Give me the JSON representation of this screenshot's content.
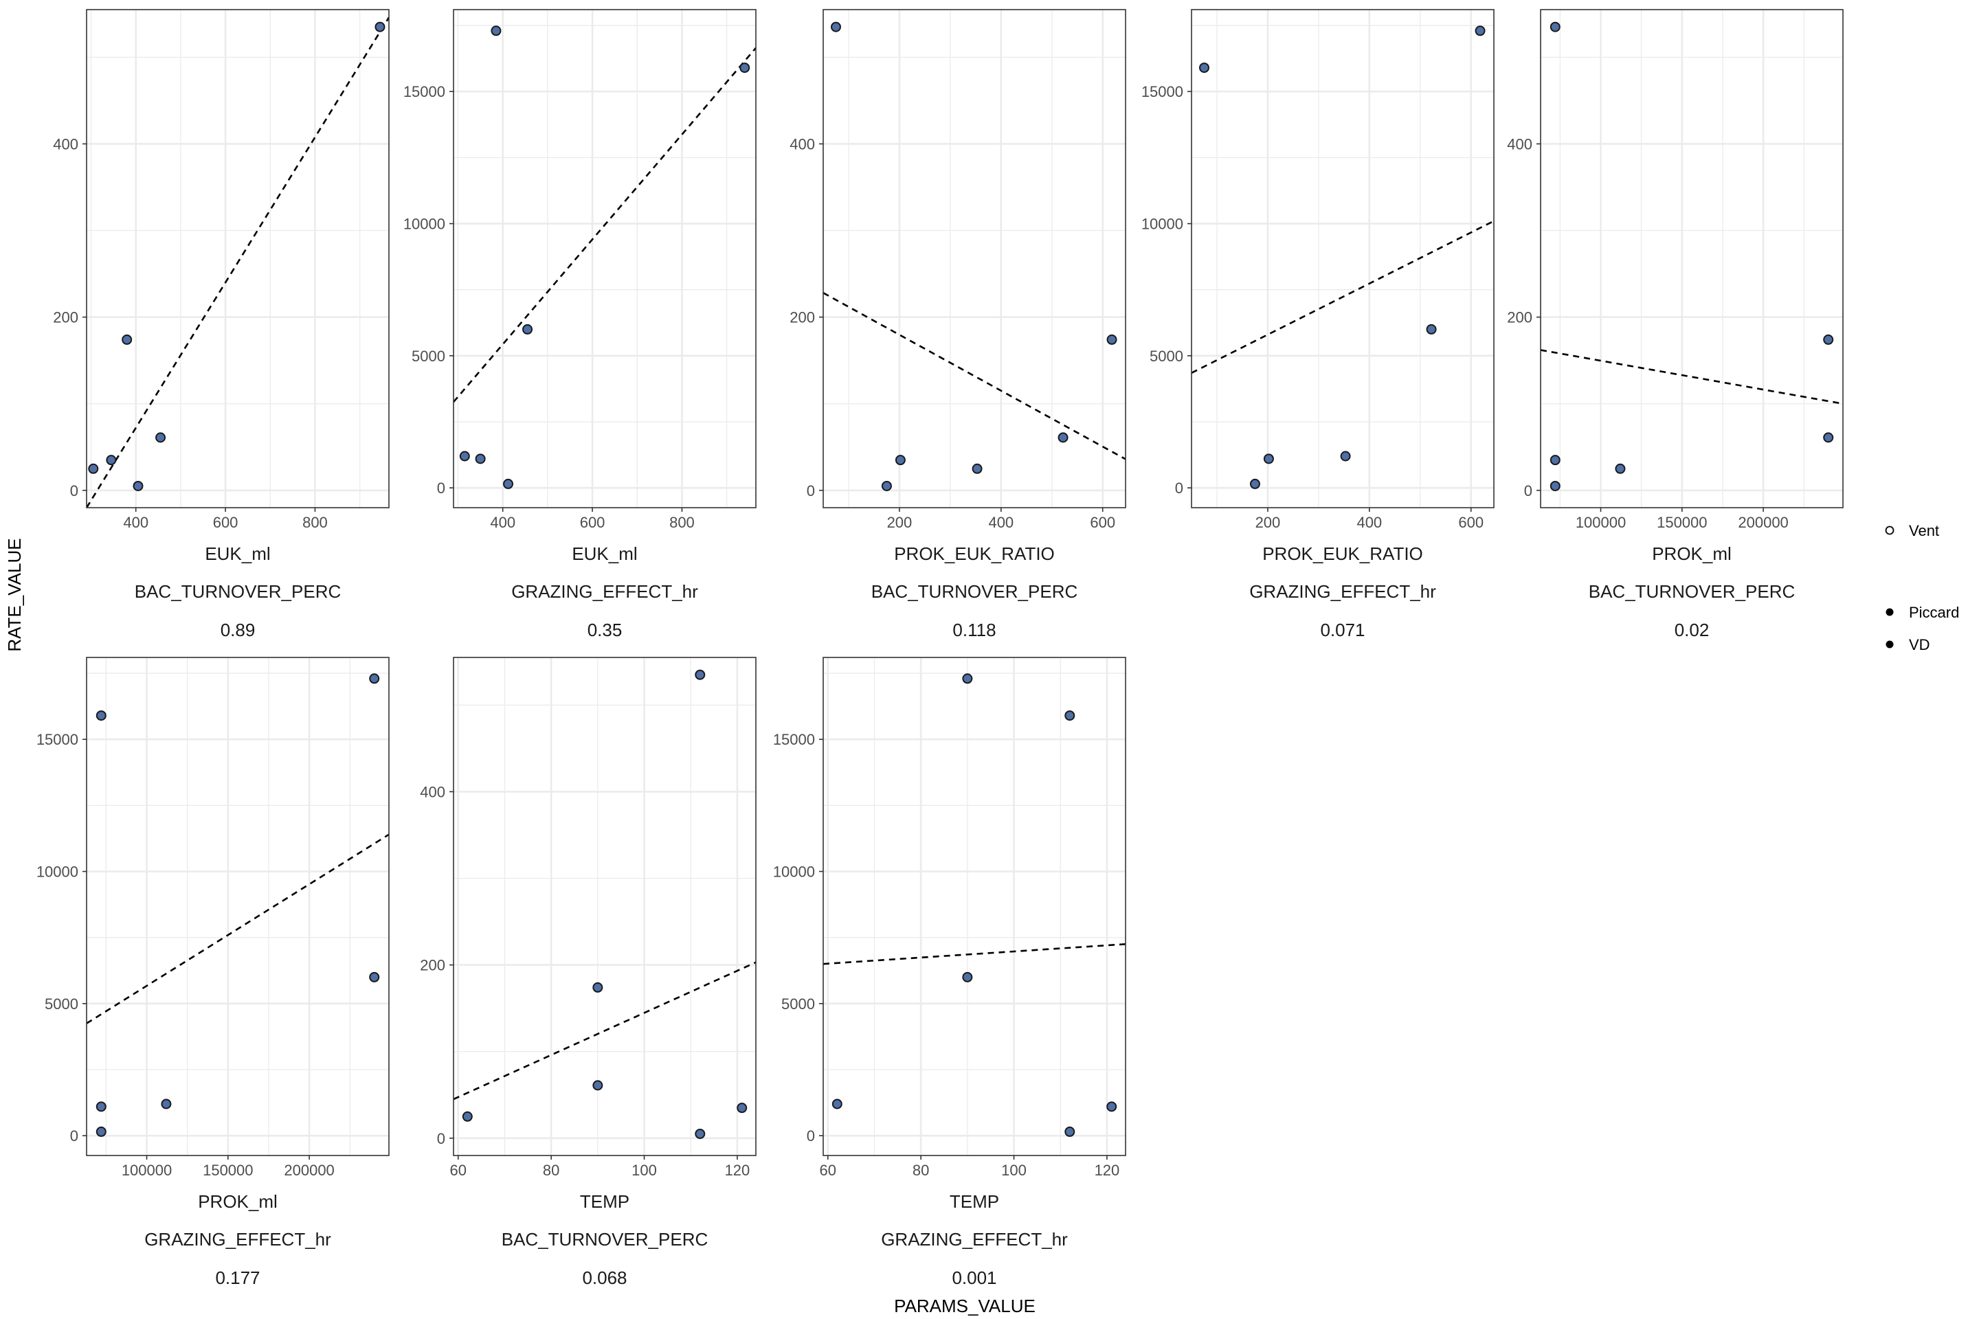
{
  "figure": {
    "y_axis_title": "RATE_VALUE",
    "x_axis_title": "PARAMS_VALUE",
    "legend": {
      "items": [
        {
          "label": "Vent",
          "shape": "open-circle"
        },
        {
          "label": "Piccard",
          "shape": "filled-circle"
        },
        {
          "label": "VD",
          "shape": "filled-circle"
        }
      ]
    },
    "colors": {
      "point_fill": "#4f6fa5",
      "point_stroke": "#1a1a1a",
      "panel_border": "#333333",
      "grid": "#ebebeb",
      "fit_line": "#000000"
    }
  },
  "chart_data": [
    {
      "type": "scatter",
      "param": "EUK_ml",
      "rate": "BAC_TURNOVER_PERC",
      "stat": "0.89",
      "x": [
        305,
        345,
        380,
        405,
        455,
        945
      ],
      "y": [
        25,
        35,
        174,
        5,
        61,
        535
      ],
      "xlim": [
        290,
        965
      ],
      "ylim": [
        -20,
        555
      ],
      "xticks": [
        400,
        600,
        800
      ],
      "xtick_labels": [
        "400",
        "600",
        "800"
      ],
      "yticks": [
        0,
        200,
        400
      ],
      "ytick_labels": [
        "0",
        "200",
        "400"
      ],
      "trend": {
        "x": [
          290,
          965
        ],
        "y": [
          -20,
          546
        ]
      }
    },
    {
      "type": "scatter",
      "param": "EUK_ml",
      "rate": "GRAZING_EFFECT_hr",
      "stat": "0.35",
      "x": [
        315,
        350,
        385,
        412,
        455,
        940
      ],
      "y": [
        1200,
        1100,
        17300,
        150,
        6000,
        15900
      ],
      "xlim": [
        290,
        965
      ],
      "ylim": [
        -750,
        18100
      ],
      "xticks": [
        400,
        600,
        800
      ],
      "xtick_labels": [
        "400",
        "600",
        "800"
      ],
      "yticks": [
        0,
        5000,
        10000,
        15000
      ],
      "ytick_labels": [
        "0",
        "5000",
        "10000",
        "15000"
      ],
      "trend": {
        "x": [
          290,
          965
        ],
        "y": [
          3250,
          16650
        ]
      }
    },
    {
      "type": "scatter",
      "param": "PROK_EUK_RATIO",
      "rate": "BAC_TURNOVER_PERC",
      "stat": "0.118",
      "x": [
        75,
        175,
        202,
        353,
        522,
        618
      ],
      "y": [
        535,
        5,
        35,
        25,
        61,
        174
      ],
      "xlim": [
        50,
        645
      ],
      "ylim": [
        -20,
        555
      ],
      "xticks": [
        200,
        400,
        600
      ],
      "xtick_labels": [
        "200",
        "400",
        "600"
      ],
      "yticks": [
        0,
        200,
        400
      ],
      "ytick_labels": [
        "0",
        "200",
        "400"
      ],
      "trend": {
        "x": [
          50,
          645
        ],
        "y": [
          228,
          36
        ]
      }
    },
    {
      "type": "scatter",
      "param": "PROK_EUK_RATIO",
      "rate": "GRAZING_EFFECT_hr",
      "stat": "0.071",
      "x": [
        75,
        175,
        202,
        353,
        522,
        618
      ],
      "y": [
        15900,
        150,
        1100,
        1200,
        6000,
        17300
      ],
      "xlim": [
        50,
        645
      ],
      "ylim": [
        -750,
        18100
      ],
      "xticks": [
        200,
        400,
        600
      ],
      "xtick_labels": [
        "200",
        "400",
        "600"
      ],
      "yticks": [
        0,
        5000,
        10000,
        15000
      ],
      "ytick_labels": [
        "0",
        "5000",
        "10000",
        "15000"
      ],
      "trend": {
        "x": [
          50,
          645
        ],
        "y": [
          4350,
          10100
        ]
      }
    },
    {
      "type": "scatter",
      "param": "PROK_ml",
      "rate": "BAC_TURNOVER_PERC",
      "stat": "0.02",
      "x": [
        72000,
        72000,
        72000,
        112000,
        240000,
        240000
      ],
      "y": [
        535,
        35,
        5,
        25,
        174,
        61
      ],
      "xlim": [
        63000,
        249000
      ],
      "ylim": [
        -20,
        555
      ],
      "xticks": [
        100000,
        150000,
        200000
      ],
      "xtick_labels": [
        "100000",
        "150000",
        "200000"
      ],
      "yticks": [
        0,
        200,
        400
      ],
      "ytick_labels": [
        "0",
        "200",
        "400"
      ],
      "trend": {
        "x": [
          63000,
          249000
        ],
        "y": [
          162,
          100
        ]
      }
    },
    {
      "type": "scatter",
      "param": "PROK_ml",
      "rate": "GRAZING_EFFECT_hr",
      "stat": "0.177",
      "x": [
        72000,
        72000,
        72000,
        112000,
        240000,
        240000
      ],
      "y": [
        15900,
        1100,
        150,
        1200,
        17300,
        6000
      ],
      "xlim": [
        63000,
        249000
      ],
      "ylim": [
        -750,
        18100
      ],
      "xticks": [
        100000,
        150000,
        200000
      ],
      "xtick_labels": [
        "100000",
        "150000",
        "200000"
      ],
      "yticks": [
        0,
        5000,
        10000,
        15000
      ],
      "ytick_labels": [
        "0",
        "5000",
        "10000",
        "15000"
      ],
      "trend": {
        "x": [
          63000,
          249000
        ],
        "y": [
          4250,
          11400
        ]
      }
    },
    {
      "type": "scatter",
      "param": "TEMP",
      "rate": "BAC_TURNOVER_PERC",
      "stat": "0.068",
      "x": [
        62,
        90,
        90,
        112,
        112,
        121
      ],
      "y": [
        25,
        174,
        61,
        535,
        5,
        35
      ],
      "xlim": [
        59,
        124
      ],
      "ylim": [
        -20,
        555
      ],
      "xticks": [
        60,
        80,
        100,
        120
      ],
      "xtick_labels": [
        "60",
        "80",
        "100",
        "120"
      ],
      "yticks": [
        0,
        200,
        400
      ],
      "ytick_labels": [
        "0",
        "200",
        "400"
      ],
      "trend": {
        "x": [
          59,
          124
        ],
        "y": [
          45,
          203
        ]
      }
    },
    {
      "type": "scatter",
      "param": "TEMP",
      "rate": "GRAZING_EFFECT_hr",
      "stat": "0.001",
      "x": [
        62,
        90,
        90,
        112,
        112,
        121
      ],
      "y": [
        1200,
        17300,
        6000,
        15900,
        150,
        1100
      ],
      "xlim": [
        59,
        124
      ],
      "ylim": [
        -750,
        18100
      ],
      "xticks": [
        60,
        80,
        100,
        120
      ],
      "xtick_labels": [
        "60",
        "80",
        "100",
        "120"
      ],
      "yticks": [
        0,
        5000,
        10000,
        15000
      ],
      "ytick_labels": [
        "0",
        "5000",
        "10000",
        "15000"
      ],
      "trend": {
        "x": [
          59,
          124
        ],
        "y": [
          6500,
          7250
        ]
      }
    }
  ]
}
